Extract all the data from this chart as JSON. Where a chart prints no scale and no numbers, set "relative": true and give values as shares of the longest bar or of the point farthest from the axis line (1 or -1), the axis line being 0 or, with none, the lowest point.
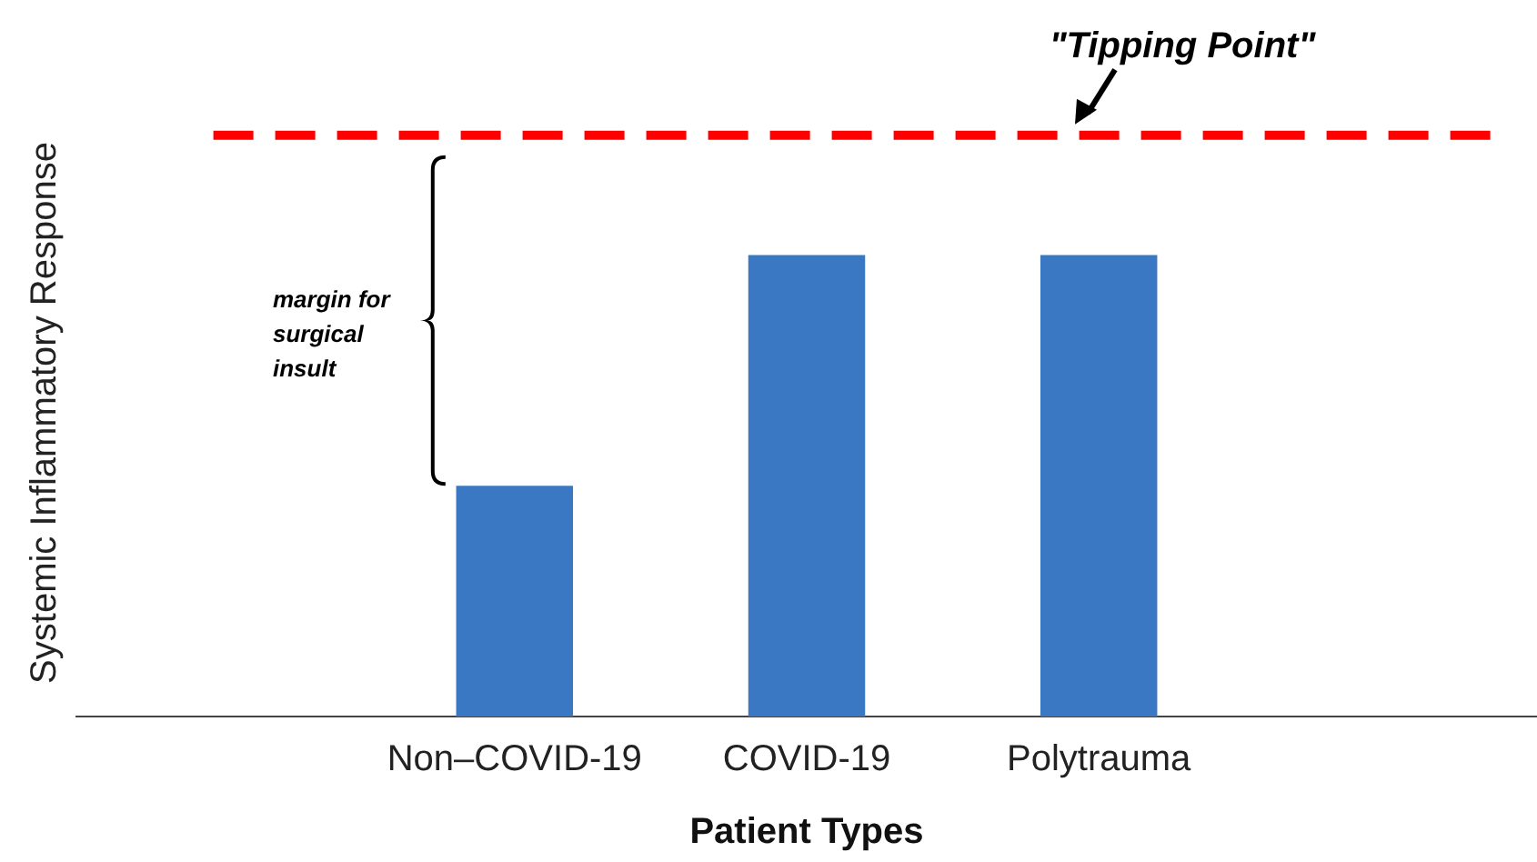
{
  "chart_data": {
    "type": "bar",
    "relative": true,
    "xlabel": "Patient Types",
    "ylabel": "Systemic Inflammatory Response",
    "categories": [
      null,
      "Non–COVID-19",
      "COVID-19",
      "Polytrauma",
      null
    ],
    "values": [
      null,
      0.5,
      1,
      1,
      null
    ],
    "color": "#3a78c4",
    "ref_lines": [
      {
        "axis": "y",
        "value": 1.26,
        "label": "\"Tipping Point\"",
        "color": "#ff0000",
        "line_style": "dashed"
      }
    ],
    "annotations": [
      "margin for surgical insult"
    ],
    "grid": false,
    "legend": false
  }
}
